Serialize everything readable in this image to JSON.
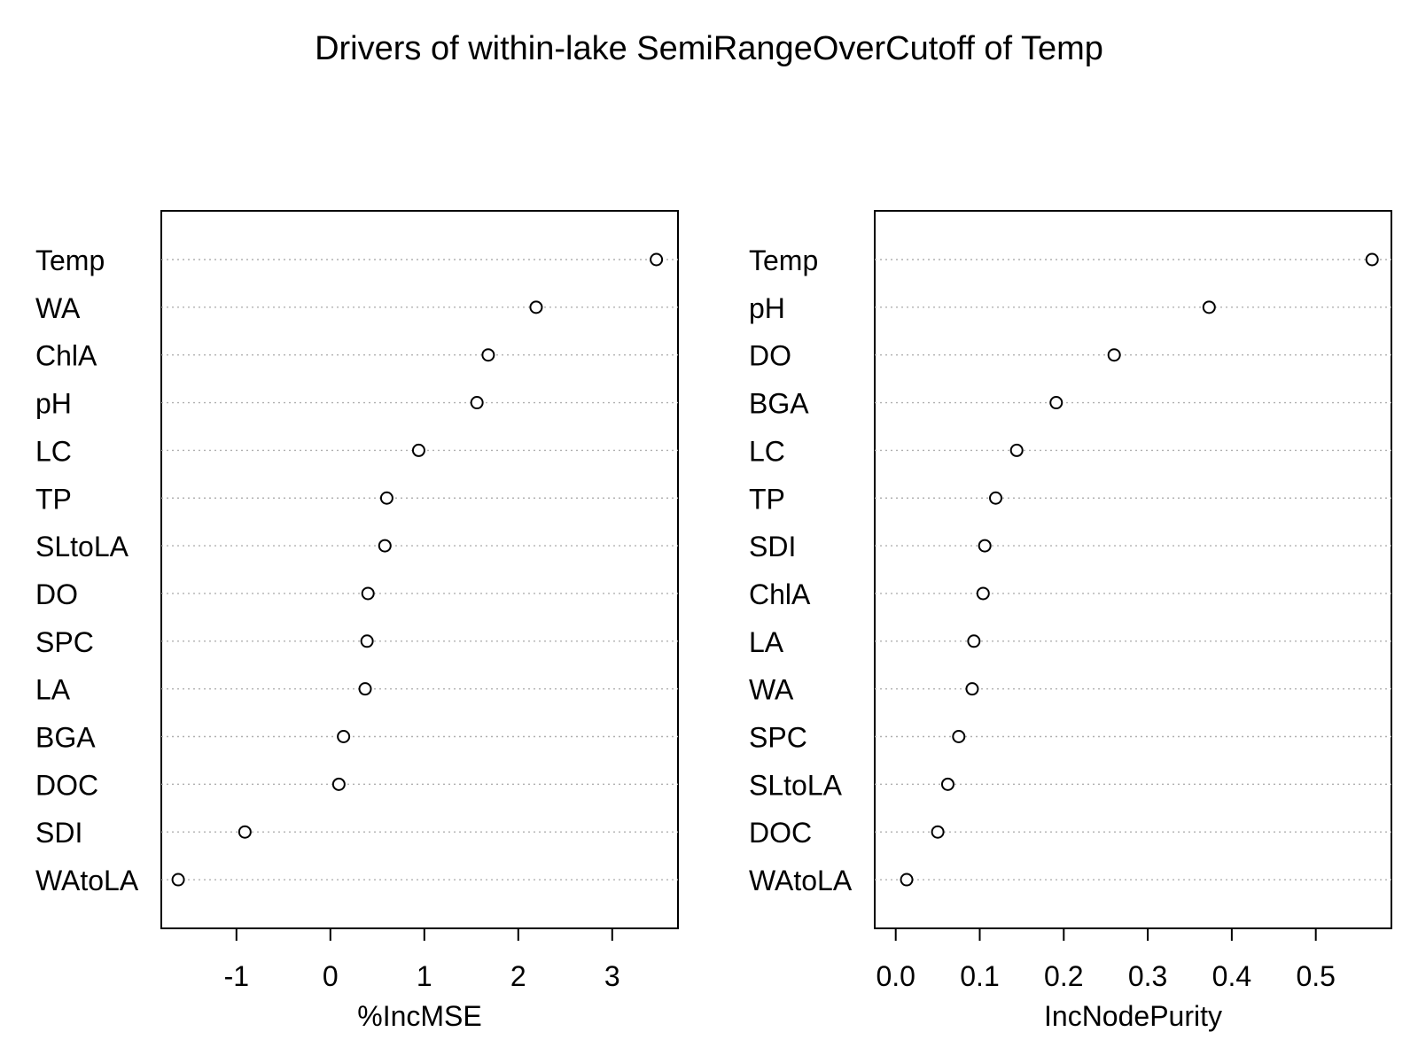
{
  "title": "Drivers of within-lake SemiRangeOverCutoff of Temp",
  "chart_data": [
    {
      "type": "scatter",
      "subtype": "dotchart",
      "xlabel": "%IncMSE",
      "xlim": [
        -1.8,
        3.7
      ],
      "xticks": [
        "-1",
        "0",
        "1",
        "2",
        "3"
      ],
      "grid": "dotted horizontal",
      "categories": [
        "Temp",
        "WA",
        "ChlA",
        "pH",
        "LC",
        "TP",
        "SLtoLA",
        "DO",
        "SPC",
        "LA",
        "BGA",
        "DOC",
        "SDI",
        "WAtoLA"
      ],
      "values": [
        3.47,
        2.19,
        1.68,
        1.56,
        0.94,
        0.6,
        0.58,
        0.4,
        0.39,
        0.37,
        0.14,
        0.09,
        -0.91,
        -1.62
      ]
    },
    {
      "type": "scatter",
      "subtype": "dotchart",
      "xlabel": "IncNodePurity",
      "xlim": [
        -0.025,
        0.59
      ],
      "xticks": [
        "0.0",
        "0.1",
        "0.2",
        "0.3",
        "0.4",
        "0.5"
      ],
      "grid": "dotted horizontal",
      "categories": [
        "Temp",
        "pH",
        "DO",
        "BGA",
        "LC",
        "TP",
        "SDI",
        "ChlA",
        "LA",
        "WA",
        "SPC",
        "SLtoLA",
        "DOC",
        "WAtoLA"
      ],
      "values": [
        0.567,
        0.373,
        0.26,
        0.191,
        0.144,
        0.119,
        0.106,
        0.104,
        0.093,
        0.091,
        0.075,
        0.062,
        0.05,
        0.013
      ]
    }
  ]
}
